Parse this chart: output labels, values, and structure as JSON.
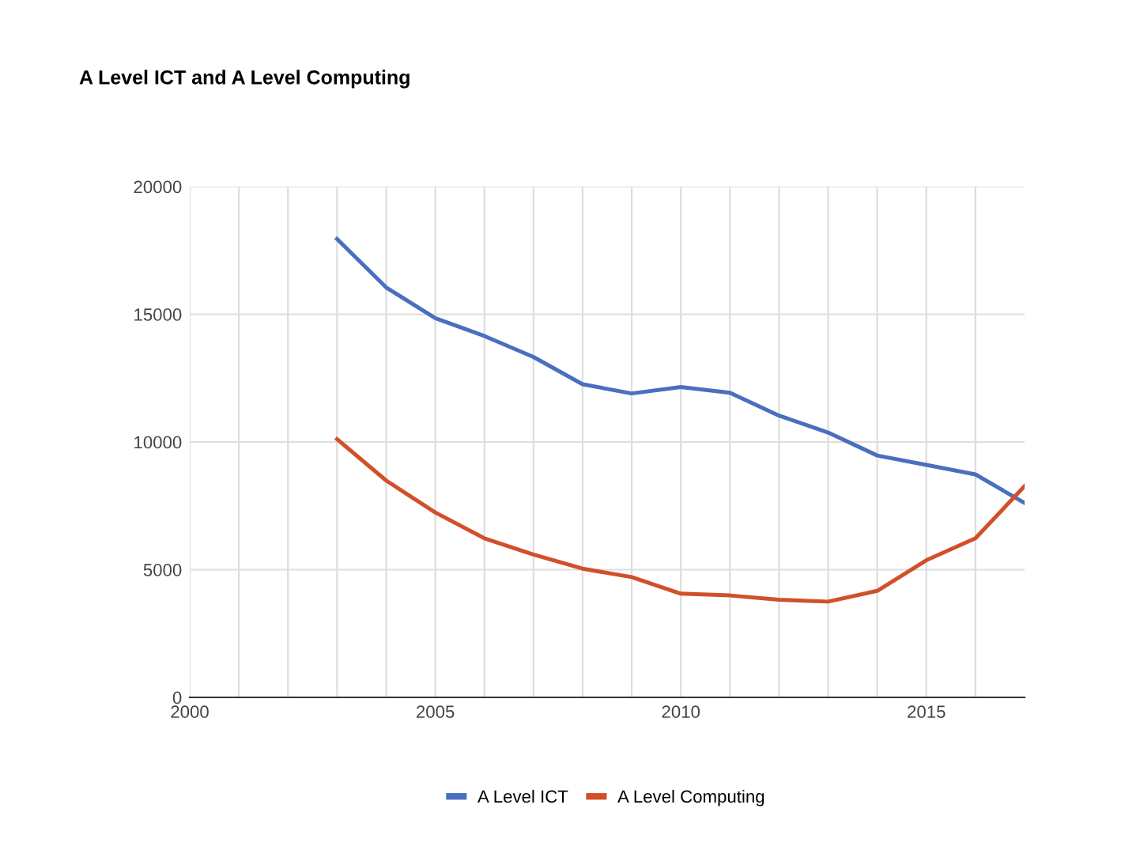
{
  "chart_data": {
    "type": "line",
    "title": "A Level ICT and A Level Computing",
    "x": [
      2003,
      2004,
      2005,
      2006,
      2007,
      2008,
      2009,
      2010,
      2011,
      2012,
      2013,
      2014,
      2015,
      2016,
      2017
    ],
    "series": [
      {
        "name": "A Level ICT",
        "color": "#4a6fbf",
        "values": [
          17950,
          16050,
          14850,
          14150,
          13330,
          12260,
          11900,
          12150,
          11930,
          11030,
          10370,
          9470,
          9100,
          8730,
          7610
        ]
      },
      {
        "name": "A Level Computing",
        "color": "#d1502a",
        "values": [
          10110,
          8490,
          7240,
          6230,
          5590,
          5040,
          4710,
          4060,
          3990,
          3820,
          3750,
          4170,
          5370,
          6230,
          8270
        ]
      }
    ],
    "xlim": [
      2000,
      2017
    ],
    "xticks": [
      2000,
      {
        "value": 2001,
        "label": null
      },
      {
        "value": 2002,
        "label": null
      },
      {
        "value": 2003,
        "label": null
      },
      {
        "value": 2004,
        "label": null
      },
      2005,
      {
        "value": 2006,
        "label": null
      },
      {
        "value": 2007,
        "label": null
      },
      {
        "value": 2008,
        "label": null
      },
      {
        "value": 2009,
        "label": null
      },
      2010,
      {
        "value": 2011,
        "label": null
      },
      {
        "value": 2012,
        "label": null
      },
      {
        "value": 2013,
        "label": null
      },
      {
        "value": 2014,
        "label": null
      },
      2015,
      {
        "value": 2016,
        "label": null
      }
    ],
    "ylim": [
      0,
      20000
    ],
    "yticks": [
      0,
      5000,
      10000,
      15000,
      20000
    ],
    "grid": true,
    "legend": "bottom",
    "marker": "none",
    "line_style": "solid"
  }
}
